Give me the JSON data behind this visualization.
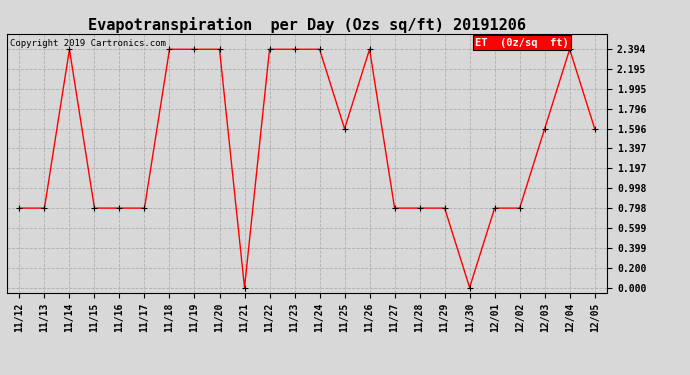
{
  "title": "Evapotranspiration  per Day (Ozs sq/ft) 20191206",
  "copyright_text": "Copyright 2019 Cartronics.com",
  "legend_label": "ET  (0z/sq  ft)",
  "x_labels": [
    "11/12",
    "11/13",
    "11/14",
    "11/15",
    "11/16",
    "11/17",
    "11/18",
    "11/19",
    "11/20",
    "11/21",
    "11/22",
    "11/23",
    "11/24",
    "11/25",
    "11/26",
    "11/27",
    "11/28",
    "11/29",
    "11/30",
    "12/01",
    "12/02",
    "12/03",
    "12/04",
    "12/05"
  ],
  "y_values": [
    0.798,
    0.798,
    2.394,
    0.798,
    0.798,
    0.798,
    2.394,
    2.394,
    2.394,
    0.0,
    2.394,
    2.394,
    2.394,
    1.596,
    2.394,
    0.798,
    0.798,
    0.798,
    0.0,
    0.798,
    0.798,
    1.596,
    2.394,
    1.596
  ],
  "yticks": [
    0.0,
    0.2,
    0.399,
    0.599,
    0.798,
    0.998,
    1.197,
    1.397,
    1.596,
    1.796,
    1.995,
    2.195,
    2.394
  ],
  "line_color": "red",
  "marker_color": "black",
  "grid_color": "#aaaaaa",
  "background_color": "#d8d8d8",
  "legend_bg": "red",
  "legend_text_color": "white",
  "title_fontsize": 11,
  "copyright_fontsize": 6.5,
  "tick_fontsize": 7,
  "legend_fontsize": 7.5,
  "ylim": [
    -0.05,
    2.55
  ]
}
